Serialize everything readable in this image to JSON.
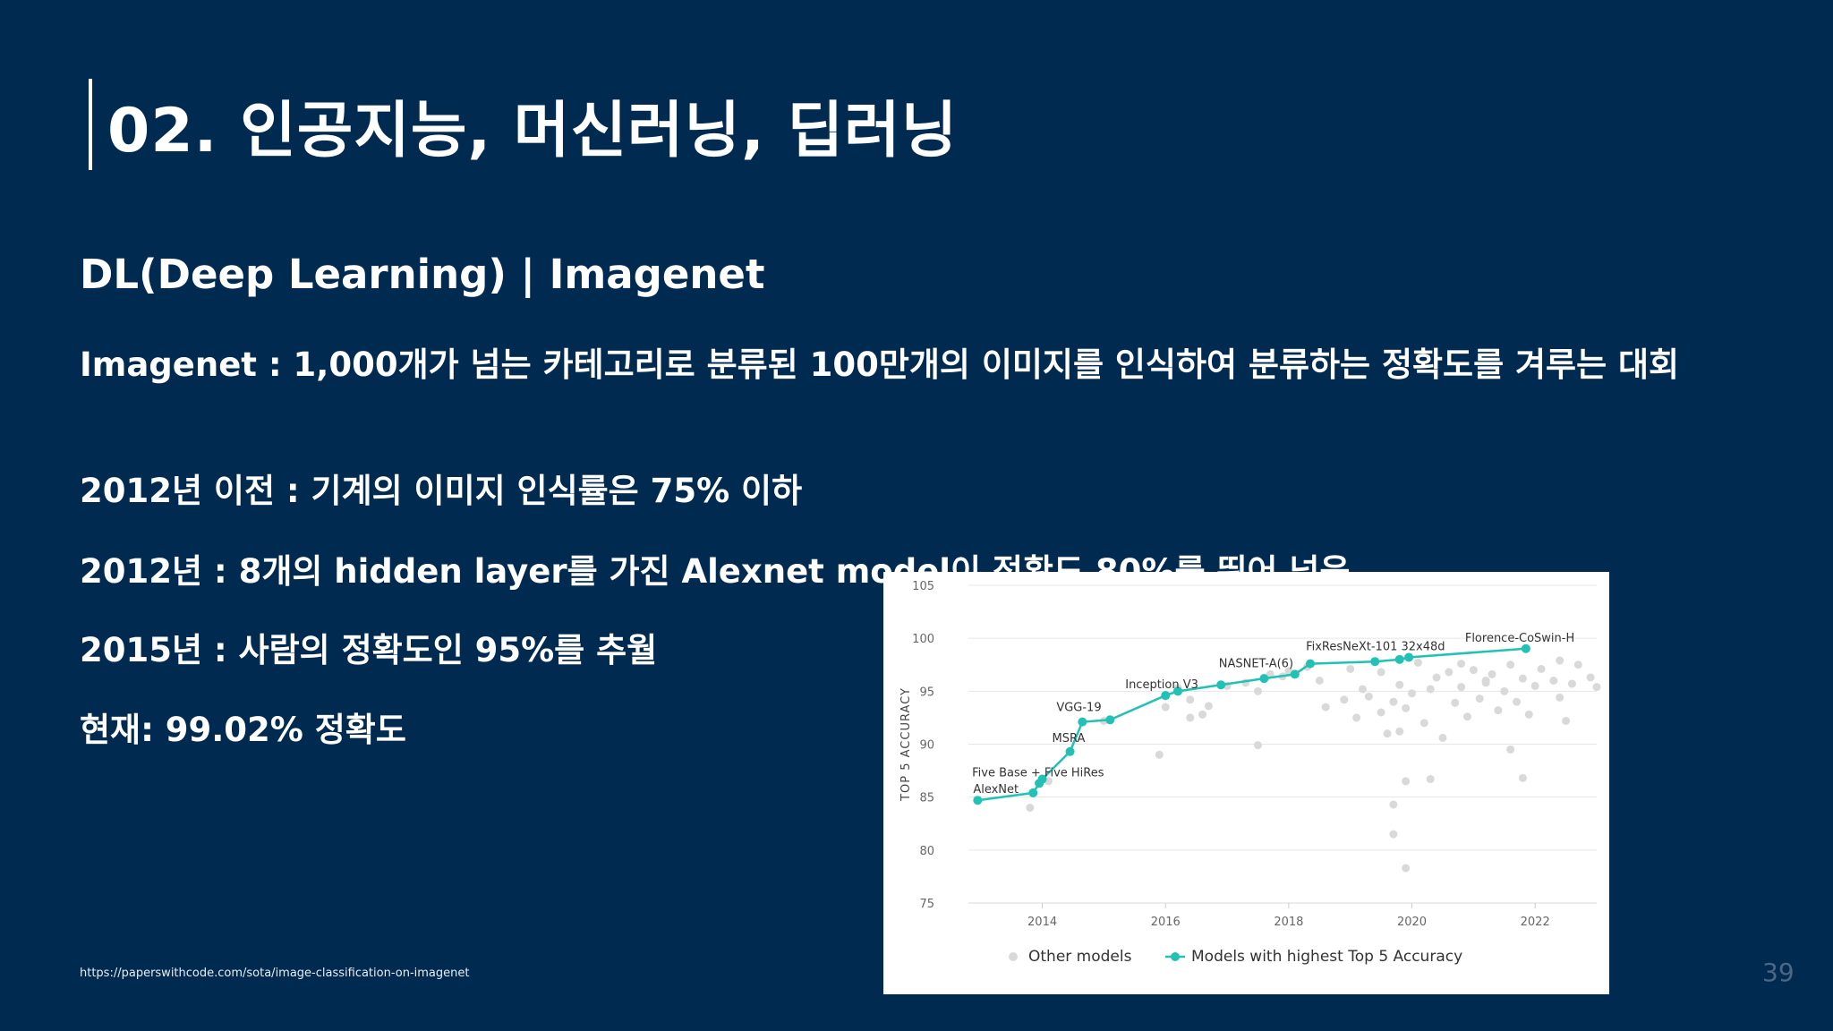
{
  "slide": {
    "title": "02. 인공지능, 머신러닝, 딥러닝",
    "subtitle": "DL(Deep Learning) | Imagenet",
    "bullets": [
      "Imagenet : 1,000개가 넘는 카테고리로 분류된 100만개의 이미지를 인식하여 분류하는 정확도를 겨루는 대회",
      "2012년 이전 : 기계의 이미지 인식률은 75% 이하",
      "2012년 : 8개의 hidden layer를 가진 Alexnet model이 정확도 80%를 뛰어 넘음",
      "2015년 : 사람의 정확도인 95%를 추월",
      "현재: 99.02% 정확도"
    ],
    "source_url": "https://paperswithcode.com/sota/image-classification-on-imagenet",
    "page_number": "39"
  },
  "chart_data": {
    "type": "scatter",
    "ylabel": "TOP 5 ACCURACY",
    "xlabel": "",
    "xlim": [
      2012.8,
      2023.0
    ],
    "ylim": [
      75,
      105
    ],
    "x_ticks": [
      2014,
      2016,
      2018,
      2020,
      2022
    ],
    "y_ticks": [
      75,
      80,
      85,
      90,
      95,
      100,
      105
    ],
    "grid": "horizontal",
    "legend_position": "bottom",
    "colors": {
      "other": "#d9d9d9",
      "sota": "#21c1b6",
      "grid": "#e6e6e6",
      "axis_text": "#666666"
    },
    "series": [
      {
        "name": "Other models",
        "points": [
          [
            2013.8,
            84
          ],
          [
            2014.1,
            86.5
          ],
          [
            2015.0,
            92.2
          ],
          [
            2015.9,
            89
          ],
          [
            2016.0,
            93.5
          ],
          [
            2016.0,
            94.5
          ],
          [
            2016.2,
            95.3
          ],
          [
            2016.4,
            94.2
          ],
          [
            2016.4,
            92.5
          ],
          [
            2016.6,
            92.8
          ],
          [
            2016.7,
            93.6
          ],
          [
            2017.0,
            95.5
          ],
          [
            2017.3,
            95.8
          ],
          [
            2017.5,
            95.0
          ],
          [
            2017.5,
            89.9
          ],
          [
            2017.7,
            96.6
          ],
          [
            2017.9,
            96.4
          ],
          [
            2018.0,
            96.9
          ],
          [
            2018.3,
            97.3
          ],
          [
            2018.5,
            96.0
          ],
          [
            2018.6,
            93.5
          ],
          [
            2018.9,
            94.2
          ],
          [
            2019.0,
            97.1
          ],
          [
            2019.1,
            92.5
          ],
          [
            2019.2,
            95.2
          ],
          [
            2019.3,
            94.5
          ],
          [
            2019.5,
            96.8
          ],
          [
            2019.5,
            93.0
          ],
          [
            2019.6,
            91.0
          ],
          [
            2019.7,
            94.0
          ],
          [
            2019.7,
            84.3
          ],
          [
            2019.7,
            81.5
          ],
          [
            2019.8,
            95.6
          ],
          [
            2019.8,
            91.2
          ],
          [
            2019.9,
            93.4
          ],
          [
            2019.9,
            78.3
          ],
          [
            2019.9,
            86.5
          ],
          [
            2020.0,
            94.8
          ],
          [
            2020.1,
            97.7
          ],
          [
            2020.2,
            92.0
          ],
          [
            2020.3,
            95.2
          ],
          [
            2020.3,
            86.7
          ],
          [
            2020.4,
            96.3
          ],
          [
            2020.5,
            90.6
          ],
          [
            2020.6,
            96.8
          ],
          [
            2020.7,
            93.9
          ],
          [
            2020.8,
            95.4
          ],
          [
            2020.9,
            92.6
          ],
          [
            2021.0,
            97.0
          ],
          [
            2021.1,
            94.3
          ],
          [
            2021.2,
            95.8
          ],
          [
            2021.3,
            96.6
          ],
          [
            2021.4,
            93.2
          ],
          [
            2021.5,
            95.0
          ],
          [
            2021.6,
            97.5
          ],
          [
            2021.6,
            89.5
          ],
          [
            2021.7,
            94.0
          ],
          [
            2021.8,
            96.2
          ],
          [
            2021.8,
            86.8
          ],
          [
            2021.9,
            92.8
          ],
          [
            2022.0,
            95.5
          ],
          [
            2022.1,
            97.1
          ],
          [
            2022.3,
            96.0
          ],
          [
            2022.4,
            94.4
          ],
          [
            2022.5,
            92.2
          ],
          [
            2022.6,
            95.7
          ],
          [
            2022.7,
            97.5
          ],
          [
            2022.9,
            96.3
          ],
          [
            2023.0,
            95.4
          ],
          [
            2022.4,
            97.9
          ],
          [
            2021.2,
            96.0
          ],
          [
            2020.8,
            97.6
          ]
        ]
      },
      {
        "name": "Models with highest Top 5 Accuracy",
        "points": [
          [
            2012.95,
            84.7
          ],
          [
            2013.85,
            85.4
          ],
          [
            2013.95,
            86.3
          ],
          [
            2014.0,
            86.7
          ],
          [
            2014.45,
            89.3
          ],
          [
            2014.65,
            92.1
          ],
          [
            2015.1,
            92.3
          ],
          [
            2016.0,
            94.6
          ],
          [
            2016.2,
            95.0
          ],
          [
            2016.9,
            95.6
          ],
          [
            2017.6,
            96.2
          ],
          [
            2018.1,
            96.6
          ],
          [
            2018.35,
            97.6
          ],
          [
            2019.4,
            97.8
          ],
          [
            2019.8,
            98.0
          ],
          [
            2019.95,
            98.2
          ],
          [
            2021.85,
            99.02
          ]
        ]
      }
    ],
    "annotations": [
      {
        "text": "AlexNet",
        "x": 2012.95,
        "y": 84.7
      },
      {
        "text": "Five Base + Five HiRes",
        "x": 2013.95,
        "y": 86.3
      },
      {
        "text": "MSRA",
        "x": 2014.45,
        "y": 89.3
      },
      {
        "text": "VGG-19",
        "x": 2014.65,
        "y": 92.1
      },
      {
        "text": "Inception V3",
        "x": 2016.0,
        "y": 94.6
      },
      {
        "text": "NASNET-A(6)",
        "x": 2018.1,
        "y": 96.6
      },
      {
        "text": "FixResNeXt-101 32x48d",
        "x": 2019.95,
        "y": 98.2
      },
      {
        "text": "Florence-CoSwin-H",
        "x": 2021.85,
        "y": 99.02
      }
    ]
  }
}
